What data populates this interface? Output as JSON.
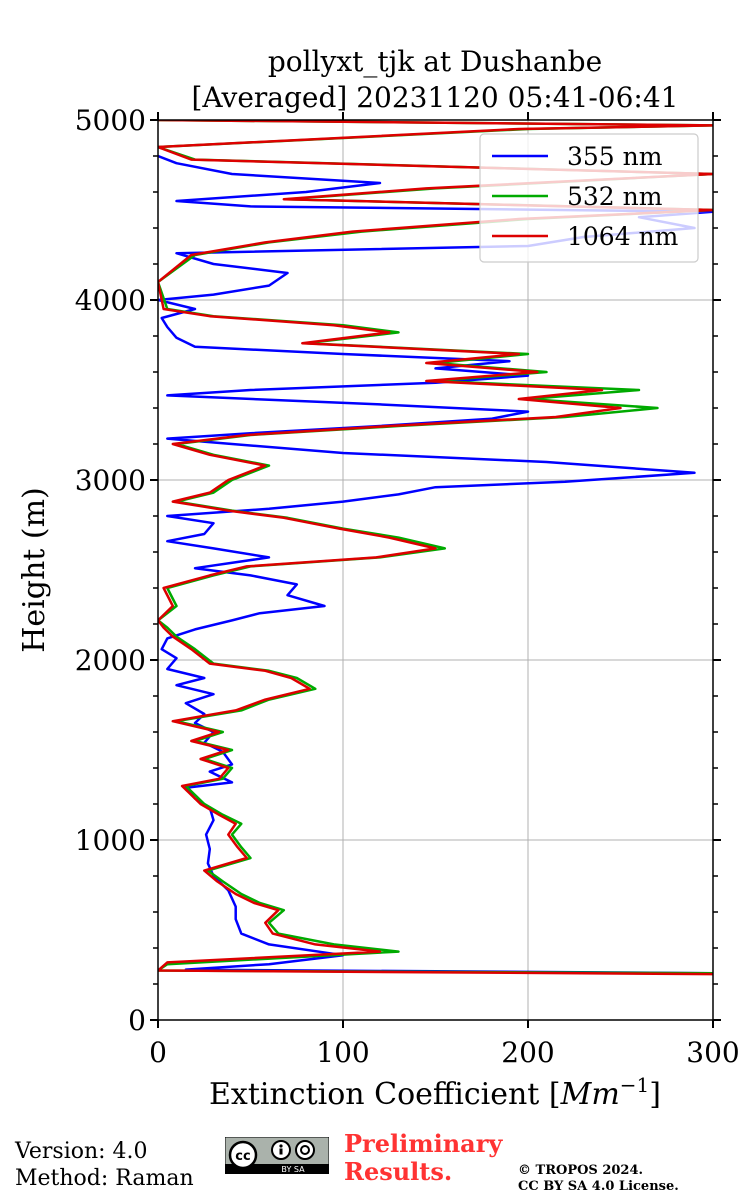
{
  "chart_data": {
    "type": "line",
    "title": "pollyxt_tjk at Dushanbe",
    "subtitle": "[Averaged] 20231120 05:41-06:41",
    "xlabel": "Extinction Coefficient [",
    "xlabel_unit": "Mm",
    "xlabel_exp": "−1",
    "xlabel_close": "]",
    "ylabel": "Height (m)",
    "xlim": [
      0,
      300
    ],
    "ylim": [
      0,
      5000
    ],
    "xticks": [
      0,
      100,
      200,
      300
    ],
    "xtick_labels": [
      "0",
      "100",
      "200",
      "300"
    ],
    "yticks": [
      0,
      1000,
      2000,
      3000,
      4000,
      5000
    ],
    "ytick_labels": [
      "0",
      "1000",
      "2000",
      "3000",
      "4000",
      "5000"
    ],
    "grid": true,
    "legend_position": "top-right",
    "series": [
      {
        "name": "355 nm",
        "color": "#0000ff",
        "points": [
          [
            300,
            260
          ],
          [
            15,
            280
          ],
          [
            60,
            310
          ],
          [
            100,
            360
          ],
          [
            60,
            420
          ],
          [
            45,
            480
          ],
          [
            42,
            560
          ],
          [
            42,
            630
          ],
          [
            38,
            720
          ],
          [
            30,
            800
          ],
          [
            27,
            870
          ],
          [
            28,
            950
          ],
          [
            26,
            1030
          ],
          [
            30,
            1110
          ],
          [
            28,
            1180
          ],
          [
            20,
            1230
          ],
          [
            15,
            1290
          ],
          [
            40,
            1320
          ],
          [
            28,
            1380
          ],
          [
            40,
            1420
          ],
          [
            35,
            1490
          ],
          [
            25,
            1540
          ],
          [
            30,
            1600
          ],
          [
            20,
            1650
          ],
          [
            25,
            1700
          ],
          [
            15,
            1760
          ],
          [
            30,
            1810
          ],
          [
            10,
            1860
          ],
          [
            25,
            1900
          ],
          [
            5,
            1950
          ],
          [
            10,
            2010
          ],
          [
            2,
            2060
          ],
          [
            5,
            2120
          ],
          [
            20,
            2170
          ],
          [
            40,
            2220
          ],
          [
            55,
            2260
          ],
          [
            90,
            2300
          ],
          [
            70,
            2360
          ],
          [
            75,
            2420
          ],
          [
            50,
            2470
          ],
          [
            20,
            2510
          ],
          [
            60,
            2570
          ],
          [
            30,
            2620
          ],
          [
            5,
            2660
          ],
          [
            25,
            2700
          ],
          [
            30,
            2760
          ],
          [
            5,
            2800
          ],
          [
            60,
            2840
          ],
          [
            100,
            2880
          ],
          [
            130,
            2920
          ],
          [
            150,
            2960
          ],
          [
            220,
            2990
          ],
          [
            290,
            3040
          ],
          [
            210,
            3100
          ],
          [
            100,
            3150
          ],
          [
            40,
            3200
          ],
          [
            5,
            3230
          ],
          [
            50,
            3260
          ],
          [
            120,
            3300
          ],
          [
            180,
            3340
          ],
          [
            200,
            3380
          ],
          [
            120,
            3420
          ],
          [
            5,
            3470
          ],
          [
            50,
            3500
          ],
          [
            150,
            3540
          ],
          [
            200,
            3580
          ],
          [
            150,
            3620
          ],
          [
            190,
            3660
          ],
          [
            100,
            3700
          ],
          [
            20,
            3740
          ],
          [
            10,
            3790
          ],
          [
            5,
            3850
          ],
          [
            2,
            3900
          ],
          [
            20,
            3950
          ],
          [
            0,
            4000
          ],
          [
            30,
            4030
          ],
          [
            60,
            4080
          ],
          [
            70,
            4150
          ],
          [
            30,
            4200
          ],
          [
            10,
            4260
          ],
          [
            200,
            4300
          ],
          [
            230,
            4350
          ],
          [
            290,
            4400
          ],
          [
            260,
            4460
          ],
          [
            300,
            4490
          ],
          [
            50,
            4520
          ],
          [
            10,
            4550
          ],
          [
            80,
            4600
          ],
          [
            120,
            4650
          ],
          [
            40,
            4700
          ],
          [
            10,
            4760
          ],
          [
            0,
            4800
          ]
        ]
      },
      {
        "name": "532 nm",
        "color": "#00aa00",
        "points": [
          [
            300,
            260
          ],
          [
            0,
            275
          ],
          [
            5,
            310
          ],
          [
            130,
            380
          ],
          [
            95,
            420
          ],
          [
            65,
            480
          ],
          [
            60,
            540
          ],
          [
            68,
            610
          ],
          [
            55,
            650
          ],
          [
            45,
            700
          ],
          [
            35,
            770
          ],
          [
            27,
            830
          ],
          [
            50,
            900
          ],
          [
            45,
            960
          ],
          [
            40,
            1030
          ],
          [
            45,
            1090
          ],
          [
            35,
            1140
          ],
          [
            25,
            1200
          ],
          [
            15,
            1300
          ],
          [
            35,
            1340
          ],
          [
            40,
            1400
          ],
          [
            25,
            1450
          ],
          [
            40,
            1500
          ],
          [
            20,
            1550
          ],
          [
            35,
            1600
          ],
          [
            10,
            1660
          ],
          [
            45,
            1720
          ],
          [
            60,
            1780
          ],
          [
            85,
            1840
          ],
          [
            75,
            1900
          ],
          [
            60,
            1940
          ],
          [
            30,
            1980
          ],
          [
            20,
            2060
          ],
          [
            10,
            2130
          ],
          [
            5,
            2180
          ],
          [
            0,
            2220
          ],
          [
            10,
            2300
          ],
          [
            5,
            2400
          ],
          [
            30,
            2470
          ],
          [
            50,
            2520
          ],
          [
            120,
            2570
          ],
          [
            155,
            2620
          ],
          [
            130,
            2680
          ],
          [
            100,
            2730
          ],
          [
            70,
            2790
          ],
          [
            40,
            2830
          ],
          [
            10,
            2880
          ],
          [
            30,
            2930
          ],
          [
            40,
            3000
          ],
          [
            60,
            3080
          ],
          [
            30,
            3140
          ],
          [
            10,
            3200
          ],
          [
            50,
            3250
          ],
          [
            130,
            3300
          ],
          [
            220,
            3350
          ],
          [
            270,
            3400
          ],
          [
            200,
            3450
          ],
          [
            260,
            3500
          ],
          [
            150,
            3550
          ],
          [
            210,
            3600
          ],
          [
            150,
            3650
          ],
          [
            200,
            3700
          ],
          [
            80,
            3760
          ],
          [
            130,
            3820
          ],
          [
            100,
            3860
          ],
          [
            30,
            3910
          ],
          [
            5,
            3950
          ],
          [
            0,
            4100
          ],
          [
            20,
            4250
          ],
          [
            60,
            4320
          ],
          [
            110,
            4380
          ],
          [
            200,
            4450
          ],
          [
            300,
            4500
          ],
          [
            70,
            4560
          ],
          [
            150,
            4620
          ],
          [
            300,
            4700
          ],
          [
            20,
            4780
          ],
          [
            0,
            4850
          ],
          [
            200,
            4950
          ],
          [
            300,
            4970
          ],
          [
            0,
            5000
          ]
        ]
      },
      {
        "name": "1064 nm",
        "color": "#dd0000",
        "points": [
          [
            300,
            255
          ],
          [
            0,
            275
          ],
          [
            5,
            320
          ],
          [
            120,
            380
          ],
          [
            85,
            420
          ],
          [
            62,
            480
          ],
          [
            58,
            540
          ],
          [
            65,
            610
          ],
          [
            52,
            650
          ],
          [
            42,
            700
          ],
          [
            32,
            770
          ],
          [
            25,
            830
          ],
          [
            48,
            900
          ],
          [
            43,
            960
          ],
          [
            38,
            1030
          ],
          [
            42,
            1090
          ],
          [
            33,
            1140
          ],
          [
            23,
            1200
          ],
          [
            13,
            1300
          ],
          [
            33,
            1340
          ],
          [
            38,
            1400
          ],
          [
            23,
            1450
          ],
          [
            38,
            1500
          ],
          [
            18,
            1550
          ],
          [
            33,
            1600
          ],
          [
            8,
            1660
          ],
          [
            42,
            1720
          ],
          [
            58,
            1780
          ],
          [
            82,
            1840
          ],
          [
            72,
            1900
          ],
          [
            58,
            1940
          ],
          [
            28,
            1980
          ],
          [
            18,
            2060
          ],
          [
            8,
            2130
          ],
          [
            3,
            2180
          ],
          [
            0,
            2220
          ],
          [
            8,
            2300
          ],
          [
            3,
            2400
          ],
          [
            28,
            2470
          ],
          [
            48,
            2520
          ],
          [
            118,
            2570
          ],
          [
            150,
            2620
          ],
          [
            125,
            2680
          ],
          [
            98,
            2730
          ],
          [
            68,
            2790
          ],
          [
            38,
            2830
          ],
          [
            8,
            2880
          ],
          [
            28,
            2930
          ],
          [
            38,
            3000
          ],
          [
            58,
            3080
          ],
          [
            28,
            3140
          ],
          [
            8,
            3200
          ],
          [
            48,
            3250
          ],
          [
            125,
            3300
          ],
          [
            215,
            3350
          ],
          [
            250,
            3400
          ],
          [
            195,
            3450
          ],
          [
            240,
            3500
          ],
          [
            145,
            3550
          ],
          [
            205,
            3600
          ],
          [
            145,
            3650
          ],
          [
            195,
            3700
          ],
          [
            78,
            3760
          ],
          [
            125,
            3820
          ],
          [
            95,
            3860
          ],
          [
            28,
            3910
          ],
          [
            3,
            3950
          ],
          [
            0,
            4100
          ],
          [
            18,
            4250
          ],
          [
            58,
            4320
          ],
          [
            105,
            4380
          ],
          [
            195,
            4450
          ],
          [
            300,
            4500
          ],
          [
            68,
            4560
          ],
          [
            145,
            4620
          ],
          [
            300,
            4700
          ],
          [
            18,
            4780
          ],
          [
            0,
            4850
          ],
          [
            195,
            4950
          ],
          [
            300,
            4970
          ],
          [
            0,
            5000
          ]
        ]
      }
    ]
  },
  "footer": {
    "version": "Version: 4.0",
    "method": "Method: Raman",
    "preliminary_line1": "Preliminary",
    "preliminary_line2": "Results.",
    "copyright_line1": "© TROPOS 2024.",
    "copyright_line2": "CC BY SA 4.0 License.",
    "license_badge": "BY SA",
    "license_badge_cc": "cc"
  }
}
